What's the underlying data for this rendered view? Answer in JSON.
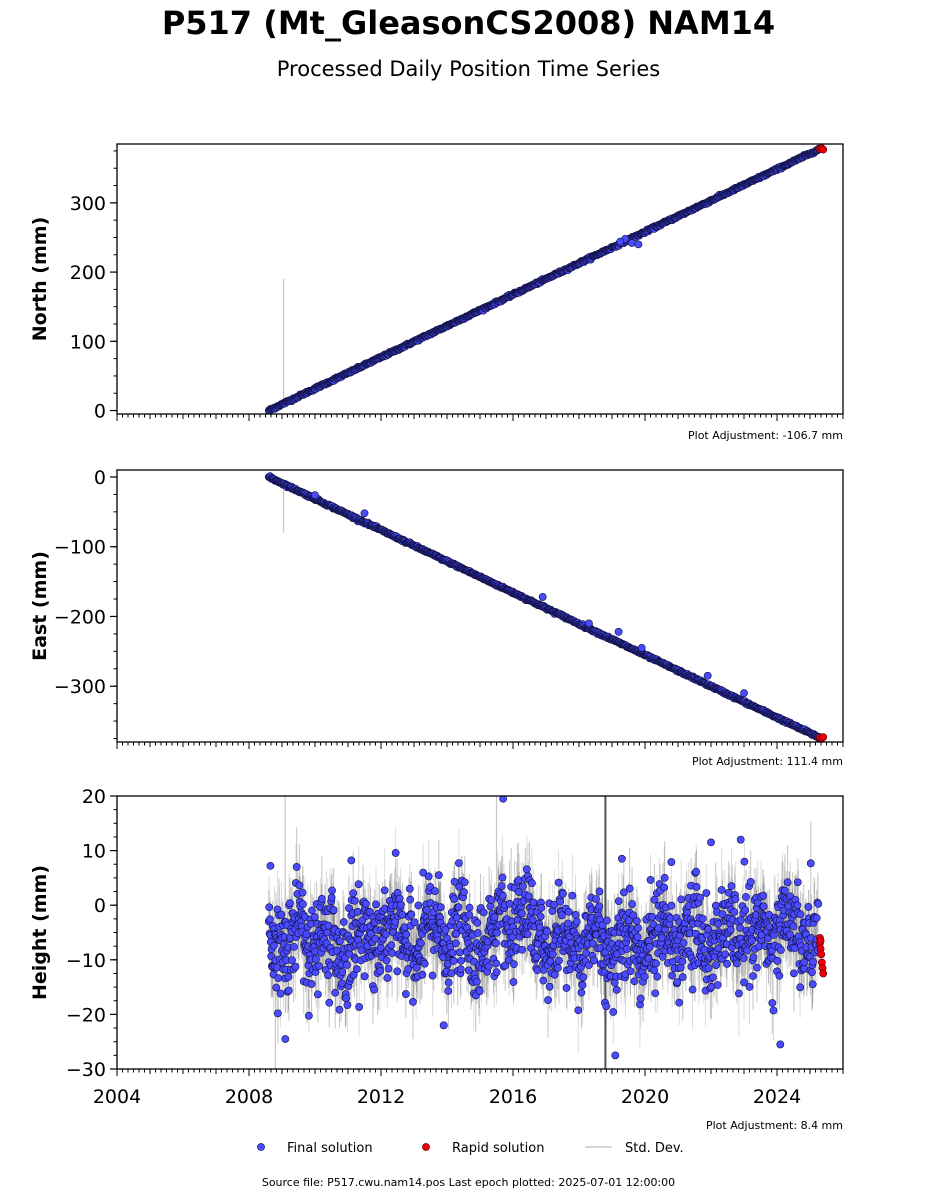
{
  "header": {
    "title": "P517 (Mt_GleasonCS2008) NAM14",
    "subtitle": "Processed Daily Position Time Series"
  },
  "footer": {
    "source": "Source file: P517.cwu.nam14.pos  Last epoch plotted: 2025-07-01 12:00:00"
  },
  "legend": {
    "placement": "bottom-center",
    "final_label": "Final solution",
    "rapid_label": "Rapid solution",
    "std_label": "Std. Dev."
  },
  "colors": {
    "final": "#4a4aff",
    "final_edge": "#101040",
    "rapid": "#e8000b",
    "std": "#c8c8c8",
    "std_dense": "#555555"
  },
  "chart_data": [
    {
      "type": "scatter",
      "panel": "north",
      "ylabel": "North (mm)",
      "adjustment": "Plot Adjustment: -106.7 mm",
      "xlim": [
        2004,
        2026
      ],
      "ylim": [
        -5,
        385
      ],
      "yticks": [
        0,
        100,
        200,
        300
      ],
      "ytick_labels": [
        "0",
        "100",
        "200",
        "300"
      ],
      "show_xtick_labels": false,
      "trend": {
        "start": [
          2008.6,
          0
        ],
        "end": [
          2025.3,
          378
        ]
      },
      "scatter": 0.8,
      "outliers": [
        {
          "x": 2019.4,
          "y": 248
        },
        {
          "x": 2019.6,
          "y": 242
        },
        {
          "x": 2019.8,
          "y": 240
        },
        {
          "x": 2019.25,
          "y": 244
        }
      ],
      "std_spikes": [
        {
          "x": 2009.05,
          "y0": 10,
          "y1": 190
        }
      ],
      "rapid": [
        {
          "x": 2025.3,
          "y": 378
        },
        {
          "x": 2025.35,
          "y": 379
        },
        {
          "x": 2025.4,
          "y": 377
        }
      ]
    },
    {
      "type": "scatter",
      "panel": "east",
      "ylabel": "East (mm)",
      "adjustment": "Plot Adjustment: 111.4 mm",
      "xlim": [
        2004,
        2026
      ],
      "ylim": [
        -380,
        10
      ],
      "yticks": [
        0,
        -100,
        -200,
        -300
      ],
      "ytick_labels": [
        "0",
        "−100",
        "−200",
        "−300"
      ],
      "show_xtick_labels": false,
      "trend": {
        "start": [
          2008.6,
          0
        ],
        "end": [
          2025.3,
          -374
        ]
      },
      "scatter": 0.8,
      "outliers": [
        {
          "x": 2010.0,
          "y": -26
        },
        {
          "x": 2011.5,
          "y": -52
        },
        {
          "x": 2016.9,
          "y": -172
        },
        {
          "x": 2018.3,
          "y": -210
        },
        {
          "x": 2019.2,
          "y": -222
        },
        {
          "x": 2019.9,
          "y": -245
        },
        {
          "x": 2021.9,
          "y": -285
        },
        {
          "x": 2023.0,
          "y": -310
        }
      ],
      "std_spikes": [
        {
          "x": 2009.05,
          "y0": -8,
          "y1": -80
        }
      ],
      "rapid": [
        {
          "x": 2025.3,
          "y": -374
        },
        {
          "x": 2025.35,
          "y": -375
        },
        {
          "x": 2025.4,
          "y": -373
        }
      ]
    },
    {
      "type": "scatter",
      "panel": "height",
      "ylabel": "Height (mm)",
      "adjustment": "Plot Adjustment: 8.4 mm",
      "xlim": [
        2004,
        2026
      ],
      "ylim": [
        -30,
        20
      ],
      "yticks": [
        20,
        10,
        0,
        -10,
        -20,
        -30
      ],
      "ytick_labels": [
        "20",
        "10",
        "0",
        "−10",
        "−20",
        "−30"
      ],
      "show_xtick_labels": true,
      "xticks": [
        2004,
        2008,
        2012,
        2016,
        2020,
        2024
      ],
      "xtick_labels": [
        "2004",
        "2008",
        "2012",
        "2016",
        "2020",
        "2024"
      ],
      "mean": -6,
      "scatter": 5.5,
      "outliers": [
        {
          "x": 2015.7,
          "y": 19.5
        },
        {
          "x": 2008.65,
          "y": 7.2
        },
        {
          "x": 2022.0,
          "y": 11.5
        },
        {
          "x": 2022.9,
          "y": 12.0
        },
        {
          "x": 2019.3,
          "y": 8.5
        },
        {
          "x": 2020.8,
          "y": 7.9
        },
        {
          "x": 2019.1,
          "y": -27.5
        },
        {
          "x": 2013.9,
          "y": -22.0
        },
        {
          "x": 2024.1,
          "y": -25.5
        },
        {
          "x": 2009.1,
          "y": -24.5
        },
        {
          "x": 2011.1,
          "y": 8.2
        }
      ],
      "std_spikes": [
        {
          "x": 2018.8,
          "y0": -30,
          "y1": 20,
          "dense": true
        },
        {
          "x": 2009.1,
          "y0": -10,
          "y1": 20
        },
        {
          "x": 2015.5,
          "y0": -8,
          "y1": 20
        },
        {
          "x": 2008.8,
          "y0": -30,
          "y1": -10
        }
      ],
      "rapid": [
        {
          "x": 2025.3,
          "y": -6.0
        },
        {
          "x": 2025.3,
          "y": -7.0
        },
        {
          "x": 2025.32,
          "y": -8.0
        },
        {
          "x": 2025.34,
          "y": -9.0
        },
        {
          "x": 2025.36,
          "y": -10.5
        },
        {
          "x": 2025.38,
          "y": -11.5
        },
        {
          "x": 2025.4,
          "y": -12.5
        },
        {
          "x": 2025.32,
          "y": -6.5
        }
      ]
    }
  ]
}
